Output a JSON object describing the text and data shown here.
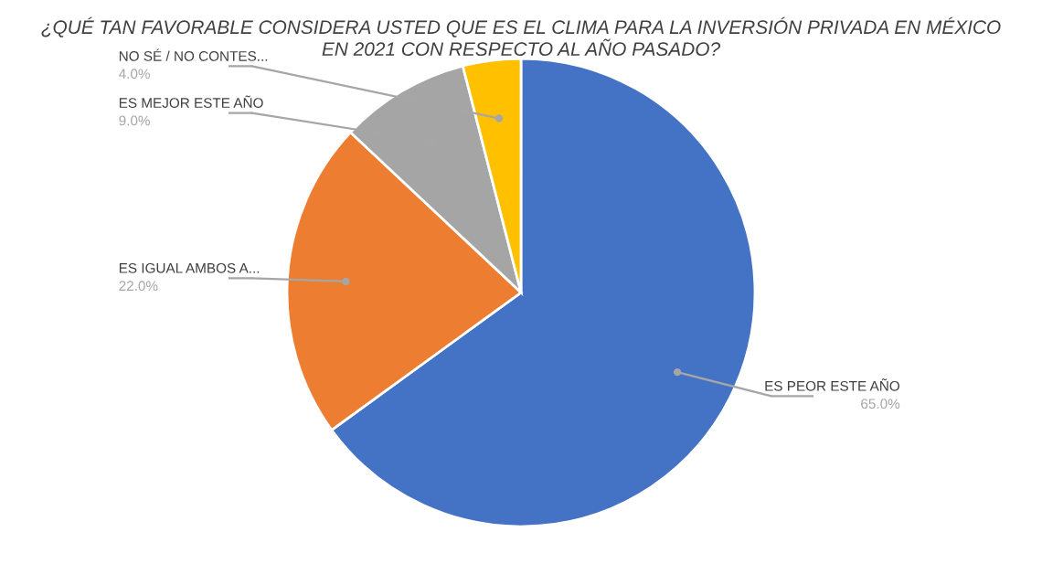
{
  "chart_data": {
    "type": "pie",
    "title": "¿QUÉ TAN FAVORABLE CONSIDERA USTED QUE ES EL CLIMA PARA LA INVERSIÓN PRIVADA EN MÉXICO\nEN 2021 CON RESPECTO AL AÑO PASADO?",
    "categories": [
      "ES PEOR ESTE AÑO",
      "ES IGUAL AMBOS A...",
      "ES MEJOR ESTE AÑO",
      "NO SÉ / NO CONTES..."
    ],
    "values": [
      65,
      22,
      9,
      4
    ],
    "value_labels": [
      "65.0%",
      "22.0%",
      "9.0%",
      "4.0%"
    ],
    "colors": [
      "#4472c4",
      "#ed7d31",
      "#a5a5a5",
      "#ffc000"
    ]
  }
}
